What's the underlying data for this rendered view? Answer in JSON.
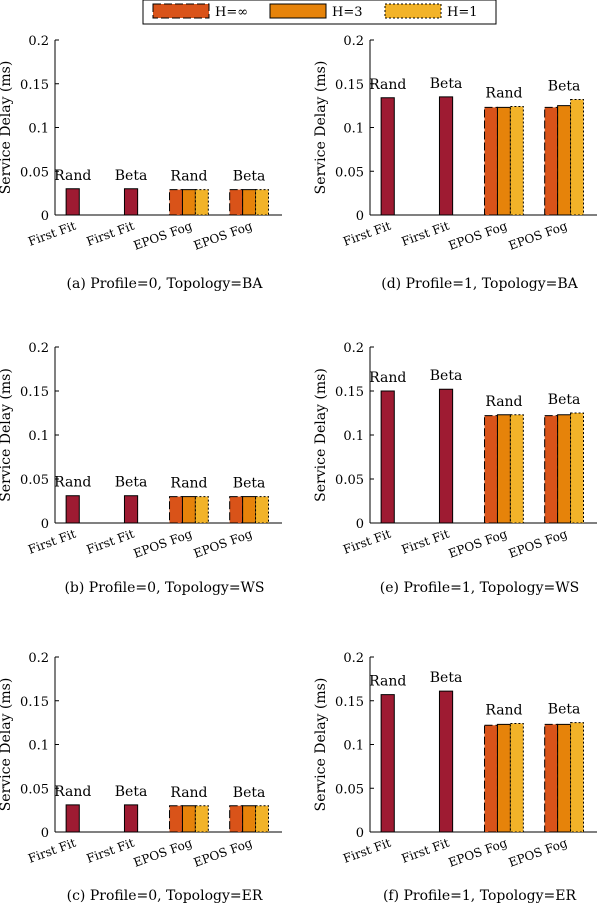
{
  "colors": {
    "first_fit": "#9e1b32",
    "h_inf": "#d95319",
    "h_3": "#e6830a",
    "h_1": "#f2b329",
    "axis": "#000000"
  },
  "legend": {
    "items": [
      {
        "label": "H=∞",
        "color": "#d95319",
        "dash": "8,3"
      },
      {
        "label": "H=3",
        "color": "#e6830a",
        "dash": ""
      },
      {
        "label": "H=1",
        "color": "#f2b329",
        "dash": "2,2"
      }
    ]
  },
  "chart_data": [
    {
      "type": "bar",
      "caption": "(a) Profile=0, Topology=BA",
      "ylabel": "Service Delay (ms)",
      "ylim": [
        0,
        0.2
      ],
      "yticks": [
        "0",
        "0.05",
        "0.1",
        "0.15",
        "0.2"
      ],
      "categories": [
        "First Fit",
        "First Fit",
        "EPOS Fog",
        "EPOS Fog"
      ],
      "group_labels": [
        "Rand",
        "Beta",
        "Rand",
        "Beta"
      ],
      "first_fit": [
        0.03,
        0.03
      ],
      "epos": [
        [
          0.029,
          0.029,
          0.029
        ],
        [
          0.029,
          0.029,
          0.029
        ]
      ]
    },
    {
      "type": "bar",
      "caption": "(b) Profile=0, Topology=WS",
      "ylabel": "Service Delay (ms)",
      "ylim": [
        0,
        0.2
      ],
      "yticks": [
        "0",
        "0.05",
        "0.1",
        "0.15",
        "0.2"
      ],
      "categories": [
        "First Fit",
        "First Fit",
        "EPOS Fog",
        "EPOS Fog"
      ],
      "group_labels": [
        "Rand",
        "Beta",
        "Rand",
        "Beta"
      ],
      "first_fit": [
        0.031,
        0.031
      ],
      "epos": [
        [
          0.03,
          0.03,
          0.03
        ],
        [
          0.03,
          0.03,
          0.03
        ]
      ]
    },
    {
      "type": "bar",
      "caption": "(c) Profile=0, Topology=ER",
      "ylabel": "Service Delay (ms)",
      "ylim": [
        0,
        0.2
      ],
      "yticks": [
        "0",
        "0.05",
        "0.1",
        "0.15",
        "0.2"
      ],
      "categories": [
        "First Fit",
        "First Fit",
        "EPOS Fog",
        "EPOS Fog"
      ],
      "group_labels": [
        "Rand",
        "Beta",
        "Rand",
        "Beta"
      ],
      "first_fit": [
        0.031,
        0.031
      ],
      "epos": [
        [
          0.03,
          0.03,
          0.03
        ],
        [
          0.03,
          0.03,
          0.03
        ]
      ]
    },
    {
      "type": "bar",
      "caption": "(d) Profile=1, Topology=BA",
      "ylabel": "Service Delay (ms)",
      "ylim": [
        0,
        0.2
      ],
      "yticks": [
        "0",
        "0.05",
        "0.1",
        "0.15",
        "0.2"
      ],
      "categories": [
        "First Fit",
        "First Fit",
        "EPOS Fog",
        "EPOS Fog"
      ],
      "group_labels": [
        "Rand",
        "Beta",
        "Rand",
        "Beta"
      ],
      "first_fit": [
        0.134,
        0.135
      ],
      "epos": [
        [
          0.123,
          0.123,
          0.124
        ],
        [
          0.123,
          0.125,
          0.132
        ]
      ]
    },
    {
      "type": "bar",
      "caption": "(e) Profile=1, Topology=WS",
      "ylabel": "Service Delay (ms)",
      "ylim": [
        0,
        0.2
      ],
      "yticks": [
        "0",
        "0.05",
        "0.1",
        "0.15",
        "0.2"
      ],
      "categories": [
        "First Fit",
        "First Fit",
        "EPOS Fog",
        "EPOS Fog"
      ],
      "group_labels": [
        "Rand",
        "Beta",
        "Rand",
        "Beta"
      ],
      "first_fit": [
        0.15,
        0.152
      ],
      "epos": [
        [
          0.122,
          0.123,
          0.123
        ],
        [
          0.122,
          0.123,
          0.125
        ]
      ]
    },
    {
      "type": "bar",
      "caption": "(f) Profile=1, Topology=ER",
      "ylabel": "Service Delay (ms)",
      "ylim": [
        0,
        0.2
      ],
      "yticks": [
        "0",
        "0.05",
        "0.1",
        "0.15",
        "0.2"
      ],
      "categories": [
        "First Fit",
        "First Fit",
        "EPOS Fog",
        "EPOS Fog"
      ],
      "group_labels": [
        "Rand",
        "Beta",
        "Rand",
        "Beta"
      ],
      "first_fit": [
        0.157,
        0.161
      ],
      "epos": [
        [
          0.122,
          0.123,
          0.124
        ],
        [
          0.123,
          0.123,
          0.125
        ]
      ]
    }
  ]
}
